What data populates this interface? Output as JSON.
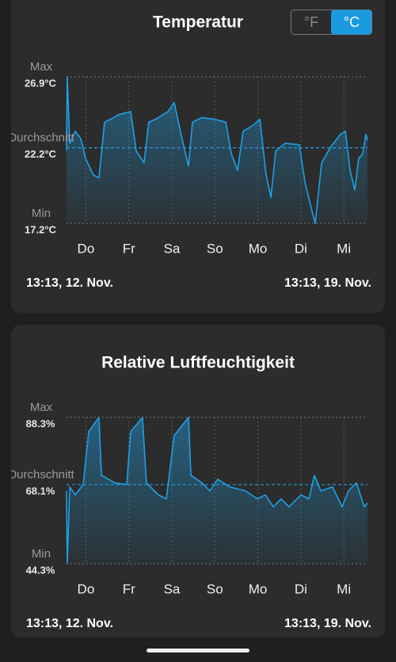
{
  "unit_toggle": {
    "options": [
      "°F",
      "°C"
    ],
    "selected": 1
  },
  "chart_data": [
    {
      "type": "line",
      "title": "Temperatur",
      "color": "#1ea0e6",
      "x": [
        0,
        0.4,
        1.8,
        4.9,
        8.0,
        10.6,
        15.0,
        18.1,
        21.2,
        24.8,
        29.2,
        35.8,
        38.9,
        43.3,
        45.9,
        49.9,
        56.6,
        60.1,
        64.5,
        68.1,
        70.3,
        75.6,
        82.2,
        88.9,
        92.0,
        95.5,
        98.6,
        104.3,
        107.9,
        111.4,
        114.1,
        116.7,
        122.0,
        130.0,
        133.1,
        137.5,
        138.8,
        142.4,
        147.7,
        153.0,
        155.6,
        158.3,
        160.9,
        163.1,
        165.3,
        167.1,
        168.0
      ],
      "values": [
        22.0,
        26.9,
        22.5,
        23.3,
        22.8,
        21.5,
        20.4,
        20.2,
        23.9,
        24.1,
        24.4,
        24.6,
        22.0,
        21.2,
        23.9,
        24.1,
        24.6,
        25.2,
        22.8,
        21.0,
        23.9,
        24.2,
        24.1,
        23.9,
        21.8,
        20.7,
        23.3,
        23.7,
        24.1,
        20.4,
        18.9,
        22.0,
        22.5,
        22.4,
        19.9,
        17.8,
        17.2,
        21.2,
        22.3,
        23.1,
        23.3,
        20.7,
        19.4,
        21.5,
        21.8,
        23.1,
        22.7
      ],
      "xlim": [
        0,
        168
      ],
      "xticks": [
        {
          "value": 10.8,
          "label": "Do"
        },
        {
          "value": 34.8,
          "label": "Fr"
        },
        {
          "value": 58.8,
          "label": "Sa"
        },
        {
          "value": 82.8,
          "label": "So"
        },
        {
          "value": 106.8,
          "label": "Mo"
        },
        {
          "value": 130.8,
          "label": "Di"
        },
        {
          "value": 154.8,
          "label": "Mi"
        }
      ],
      "ylim": [
        17.2,
        26.9
      ],
      "yticks": [
        {
          "value": 26.9,
          "label": "26.9°C"
        },
        {
          "value": 22.2,
          "label": "22.2°C"
        },
        {
          "value": 17.2,
          "label": "17.2°C"
        }
      ],
      "ytick_captions": [
        "Max",
        "Durchschnitt",
        "Min"
      ],
      "start_label": "13:13,  12. Nov.",
      "end_label": "13:13,  19. Nov."
    },
    {
      "type": "line",
      "title": "Relative Luftfeuchtigkeit",
      "color": "#1ea0e6",
      "x": [
        0,
        0.4,
        1.8,
        4.9,
        9.3,
        12.4,
        18.1,
        19.5,
        27.0,
        33.6,
        35.8,
        42.4,
        44.6,
        51.3,
        55.7,
        60.1,
        68.1,
        69.4,
        75.6,
        80.0,
        84.4,
        91.1,
        99.9,
        106.5,
        111.0,
        115.4,
        119.8,
        124.2,
        130.9,
        135.3,
        138.4,
        141.9,
        148.5,
        153.8,
        157.4,
        161.8,
        164.0,
        166.2,
        168.0
      ],
      "values": [
        66.2,
        44.3,
        67.4,
        65.0,
        68.1,
        84.0,
        88.3,
        70.9,
        68.6,
        68.1,
        84.0,
        88.3,
        68.6,
        65.0,
        63.8,
        82.8,
        88.3,
        70.9,
        68.6,
        66.2,
        69.7,
        67.4,
        66.2,
        63.8,
        65.0,
        61.4,
        63.8,
        61.4,
        65.0,
        63.8,
        70.9,
        66.2,
        67.4,
        61.4,
        66.2,
        68.6,
        65.0,
        61.4,
        62.6
      ],
      "xlim": [
        0,
        168
      ],
      "xticks": [
        {
          "value": 10.8,
          "label": "Do"
        },
        {
          "value": 34.8,
          "label": "Fr"
        },
        {
          "value": 58.8,
          "label": "Sa"
        },
        {
          "value": 82.8,
          "label": "So"
        },
        {
          "value": 106.8,
          "label": "Mo"
        },
        {
          "value": 130.8,
          "label": "Di"
        },
        {
          "value": 154.8,
          "label": "Mi"
        }
      ],
      "ylim": [
        44.3,
        88.3
      ],
      "yticks": [
        {
          "value": 88.3,
          "label": "88.3%"
        },
        {
          "value": 68.1,
          "label": "68.1%"
        },
        {
          "value": 44.3,
          "label": "44.3%"
        }
      ],
      "ytick_captions": [
        "Max",
        "Durchschnitt",
        "Min"
      ],
      "start_label": "13:13,  12. Nov.",
      "end_label": "13:13,  19. Nov."
    }
  ]
}
